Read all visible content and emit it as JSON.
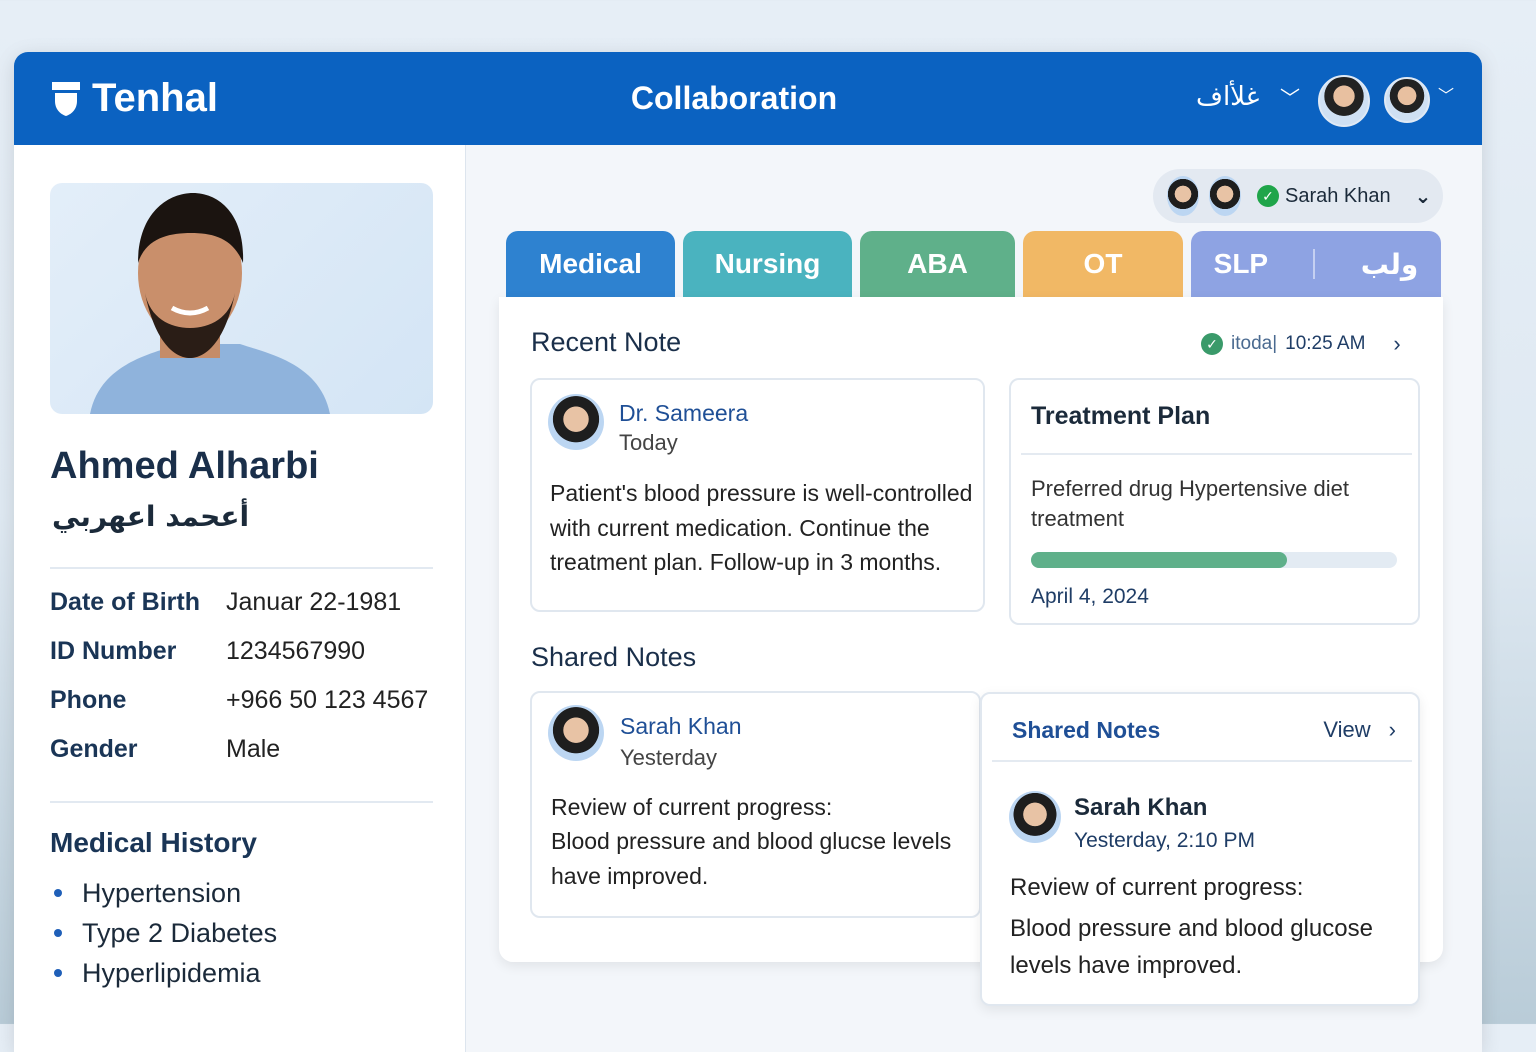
{
  "header": {
    "logo": "Tenhal",
    "title": "Collaboration",
    "language": "غلأاف"
  },
  "patient": {
    "name": "Ahmed Alharbi",
    "name_ar": "أعحمد اعهربي",
    "fields": [
      {
        "label": "Date of Birth",
        "value": "Januar 22-1981"
      },
      {
        "label": "ID Number",
        "value": "1234567990"
      },
      {
        "label": "Phone",
        "value": "+966 50 123 4567"
      },
      {
        "label": "Gender",
        "value": "Male"
      }
    ],
    "history_title": "Medical History",
    "history": [
      "Hypertension",
      "Type 2 Diabetes",
      "Hyperlipidemia"
    ]
  },
  "collaborator": {
    "name": "Sarah Khan",
    "status": "online"
  },
  "tabs": [
    {
      "label": "Medical",
      "color": "#2e82d0"
    },
    {
      "label": "Nursing",
      "color": "#4ab3bf"
    },
    {
      "label": "ABA",
      "color": "#5fb08a"
    },
    {
      "label": "OT",
      "color": "#f1b865"
    },
    {
      "label": "SLP",
      "color": "#8ea3e3"
    },
    {
      "label": "ولب",
      "color": "#8ea3e3"
    }
  ],
  "recent": {
    "title": "Recent Note",
    "timestamp_prefix": "itoda|",
    "timestamp": "10:25 AM",
    "author": "Dr. Sameera",
    "date": "Today",
    "text": "Patient's blood pressure is well-controlled with current medication. Continue the treatment plan. Follow-up in 3 months."
  },
  "plan": {
    "title": "Treatment Plan",
    "text": "Preferred drug Hypertensive diet treatment",
    "progress": 0.7,
    "date": "April 4, 2024"
  },
  "shared": {
    "title": "Shared Notes",
    "author": "Sarah Khan",
    "date": "Yesterday",
    "line1": "Review of current progress:",
    "line2": "Blood pressure and blood glucse levels have improved."
  },
  "shared_panel": {
    "title": "Shared Notes",
    "view": "View",
    "author": "Sarah Khan",
    "date": "Yesterday, 2:10 PM",
    "line1": "Review of current progress:",
    "line2": "Blood pressure and blood glucose levels have improved."
  }
}
